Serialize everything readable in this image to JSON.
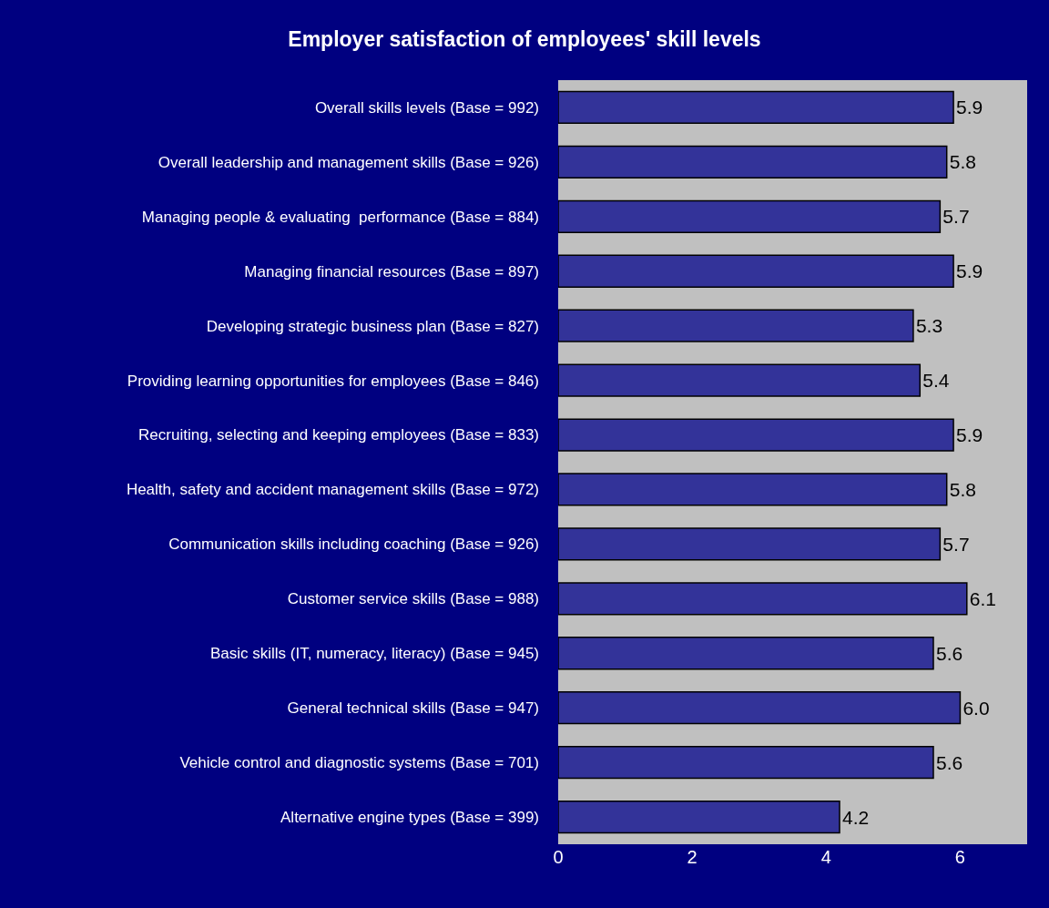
{
  "chart_data": {
    "type": "bar",
    "orientation": "horizontal",
    "title": "Employer satisfaction of employees' skill levels",
    "categories": [
      "Overall skills levels (Base = 992)",
      "Overall leadership and management skills (Base = 926)",
      "Managing people & evaluating  performance (Base = 884)",
      "Managing financial resources (Base = 897)",
      "Developing strategic business plan (Base = 827)",
      "Providing learning opportunities for employees (Base = 846)",
      "Recruiting, selecting and keeping employees (Base = 833)",
      "Health, safety and accident management skills (Base = 972)",
      "Communication skills including coaching (Base = 926)",
      "Customer service skills (Base = 988)",
      "Basic skills (IT, numeracy, literacy) (Base = 945)",
      "General technical skills (Base = 947)",
      "Vehicle control and diagnostic systems (Base = 701)",
      "Alternative engine types (Base = 399)"
    ],
    "values": [
      5.9,
      5.8,
      5.7,
      5.9,
      5.3,
      5.4,
      5.9,
      5.8,
      5.7,
      6.1,
      5.6,
      6.0,
      5.6,
      4.2
    ],
    "value_labels": [
      "5.9",
      "5.8",
      "5.7",
      "5.9",
      "5.3",
      "5.4",
      "5.9",
      "5.8",
      "5.7",
      "6.1",
      "5.6",
      "6.0",
      "5.6",
      "4.2"
    ],
    "color": "#333399",
    "xlim": [
      0,
      7
    ],
    "xticks": [
      0,
      2,
      4,
      6
    ],
    "grid": false,
    "legend": false
  }
}
